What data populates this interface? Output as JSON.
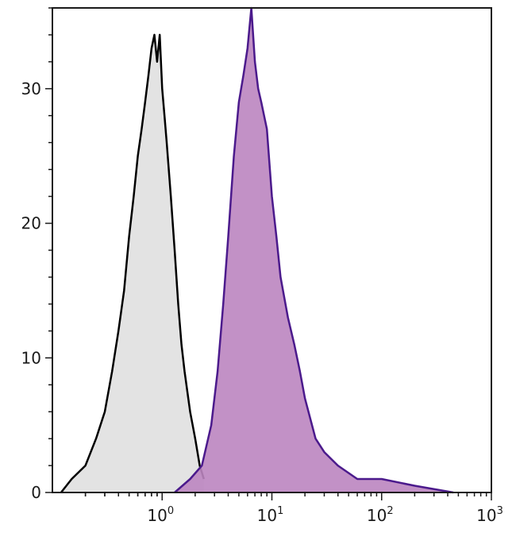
{
  "chart_data": {
    "type": "area",
    "title": "",
    "xlabel": "",
    "ylabel": "",
    "x_scale": "log",
    "xlim": [
      0.1,
      1000
    ],
    "ylim": [
      0,
      36
    ],
    "grid": false,
    "x_ticks": [
      {
        "value": 1,
        "base": "10",
        "exp": "0"
      },
      {
        "value": 10,
        "base": "10",
        "exp": "1"
      },
      {
        "value": 100,
        "base": "10",
        "exp": "2"
      },
      {
        "value": 1000,
        "base": "10",
        "exp": "3"
      }
    ],
    "y_ticks": [
      {
        "value": 0,
        "label": "0"
      },
      {
        "value": 10,
        "label": "10"
      },
      {
        "value": 20,
        "label": "20"
      },
      {
        "value": 30,
        "label": "30"
      }
    ],
    "series": [
      {
        "role": "control",
        "line_color": "#000000",
        "fill_color": "#e3e3e3",
        "x": [
          0.12,
          0.15,
          0.2,
          0.25,
          0.3,
          0.35,
          0.4,
          0.45,
          0.5,
          0.55,
          0.6,
          0.65,
          0.7,
          0.75,
          0.8,
          0.85,
          0.9,
          0.95,
          1.0,
          1.05,
          1.1,
          1.2,
          1.3,
          1.4,
          1.5,
          1.6,
          1.8,
          2.0,
          2.2,
          2.4
        ],
        "y": [
          0,
          1,
          2,
          4,
          6,
          9,
          12,
          15,
          19,
          22,
          25,
          27,
          29,
          31,
          33,
          34,
          32,
          34,
          30,
          28,
          26,
          22,
          18,
          14,
          11,
          9,
          6,
          4,
          2,
          1
        ]
      },
      {
        "role": "stained",
        "line_color": "#4b1a8c",
        "fill_color": "#bb85c0",
        "x": [
          1.3,
          1.8,
          2.3,
          2.8,
          3.2,
          3.6,
          4.0,
          4.5,
          5.0,
          5.5,
          6.0,
          6.5,
          7.0,
          7.5,
          8.0,
          9.0,
          10.0,
          11.0,
          12.0,
          14.0,
          16.0,
          18.0,
          20.0,
          25.0,
          30.0,
          40.0,
          60.0,
          100.0,
          200.0,
          450.0
        ],
        "y": [
          0,
          1,
          2,
          5,
          9,
          14,
          19,
          25,
          29,
          31,
          33,
          36,
          32,
          30,
          29,
          27,
          22,
          19,
          16,
          13,
          11,
          9,
          7,
          4,
          3,
          2,
          1,
          1,
          0.5,
          0
        ]
      }
    ]
  }
}
